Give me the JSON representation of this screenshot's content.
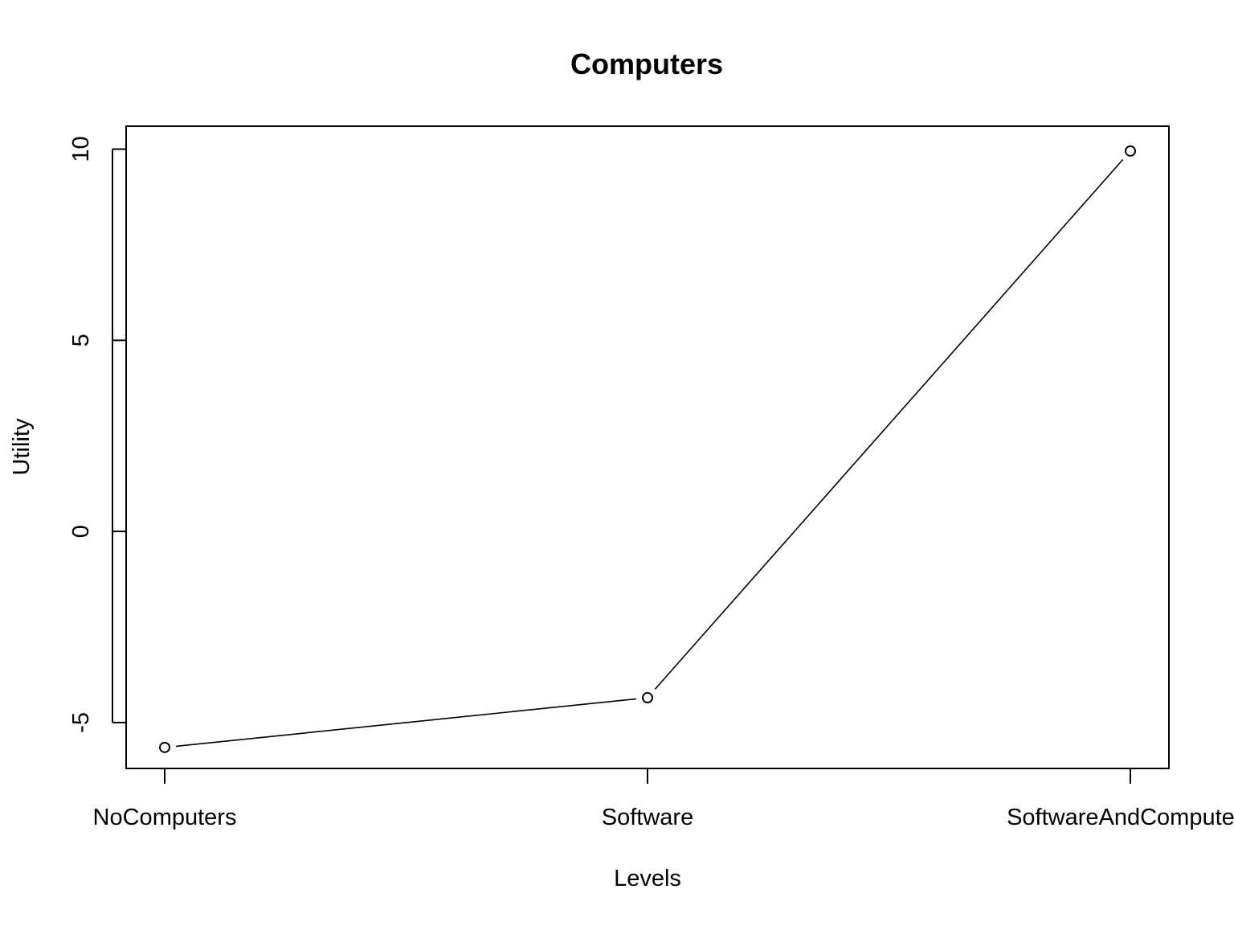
{
  "chart_data": {
    "type": "line",
    "title": "Computers",
    "xlabel": "Levels",
    "ylabel": "Utility",
    "categories": [
      "NoComputers",
      "Software",
      "SoftwareAndComputers"
    ],
    "series": [
      {
        "values": [
          -5.65,
          -4.35,
          9.95
        ]
      }
    ],
    "yticks": [
      -5,
      0,
      5,
      10
    ],
    "ytick_labels": [
      "-5",
      "0",
      "5",
      "10"
    ],
    "ylim": [
      -6.2,
      10.6
    ],
    "grid": false,
    "legend": "none",
    "marker": "open-circle",
    "line_color": "#000000"
  }
}
